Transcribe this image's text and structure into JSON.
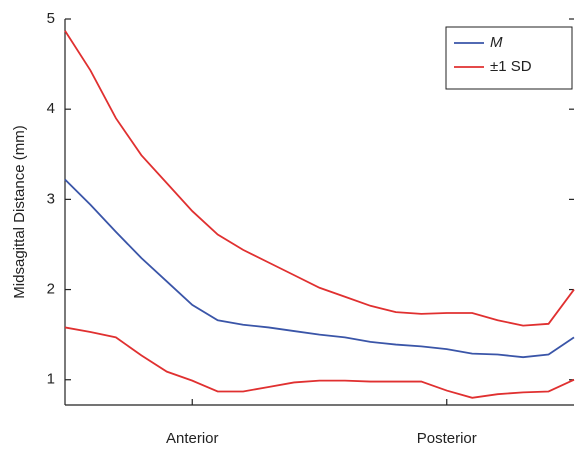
{
  "chart_data": {
    "type": "line",
    "ylabel": "Midsagittal Distance (mm)",
    "x": [
      0,
      5,
      10,
      15,
      20,
      25,
      30,
      35,
      40,
      45,
      50,
      55,
      60,
      65,
      70,
      75,
      80,
      85,
      90,
      95,
      100
    ],
    "xlim": [
      0,
      100
    ],
    "xticks": [
      {
        "value": 25,
        "label": "Anterior"
      },
      {
        "value": 75,
        "label": "Posterior"
      }
    ],
    "ylim": [
      0.72,
      5
    ],
    "yticks": [
      1,
      2,
      3,
      4,
      5
    ],
    "legend": "upper right",
    "series": [
      {
        "name": "M",
        "color": "#3a55a8",
        "values": [
          3.22,
          2.94,
          2.64,
          2.35,
          2.09,
          1.83,
          1.66,
          1.61,
          1.58,
          1.54,
          1.5,
          1.47,
          1.42,
          1.39,
          1.37,
          1.34,
          1.29,
          1.28,
          1.25,
          1.28,
          1.47
        ]
      },
      {
        "name": "±1 SD",
        "color": "#e03030",
        "values": [
          4.87,
          4.43,
          3.9,
          3.49,
          3.18,
          2.87,
          2.61,
          2.44,
          2.3,
          2.16,
          2.02,
          1.92,
          1.82,
          1.75,
          1.73,
          1.74,
          1.74,
          1.66,
          1.6,
          1.62,
          2.0
        ]
      },
      {
        "color": "#e03030",
        "values": [
          1.58,
          1.53,
          1.47,
          1.27,
          1.09,
          0.99,
          0.87,
          0.87,
          0.92,
          0.97,
          0.99,
          0.99,
          0.98,
          0.98,
          0.98,
          0.88,
          0.8,
          0.84,
          0.86,
          0.87,
          1.0
        ]
      }
    ]
  }
}
